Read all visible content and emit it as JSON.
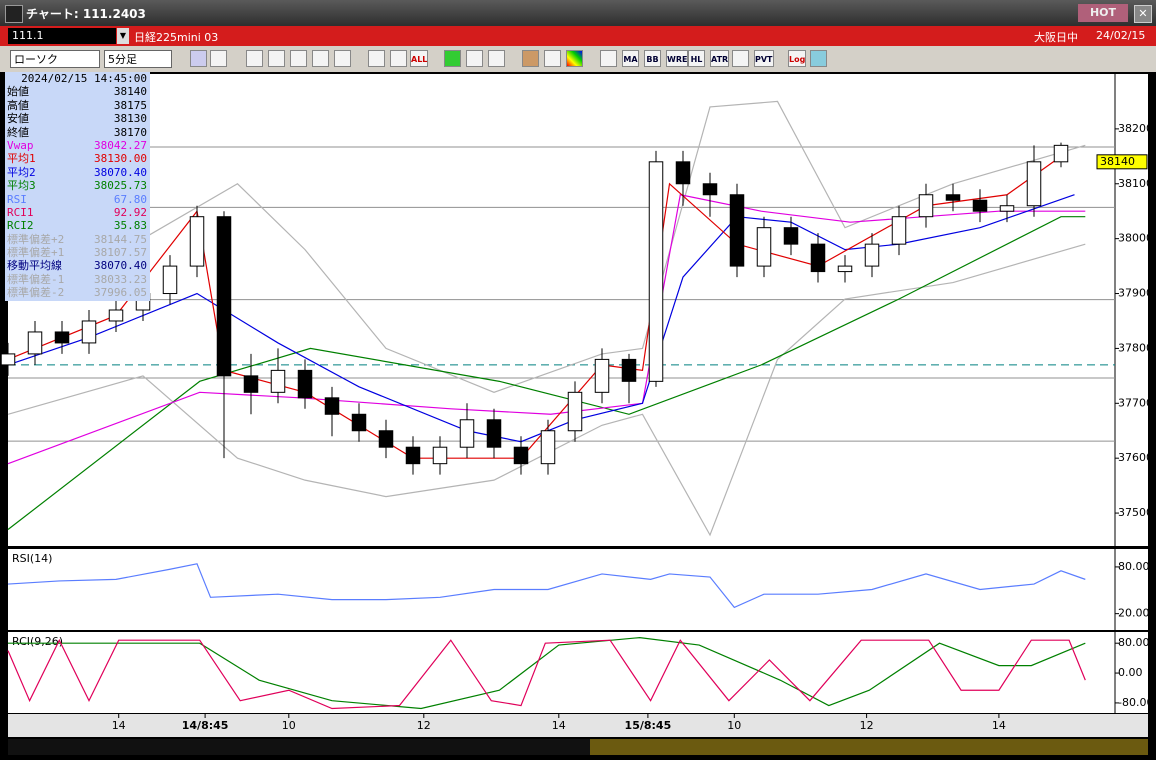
{
  "window": {
    "title": "チャート: 111.2403",
    "hot": "HOT",
    "code": "111.1",
    "instrument": "日経225mini 03",
    "session": "大阪日中",
    "date": "24/02/15"
  },
  "toolbar": {
    "chart_type": "ローソク",
    "interval": "5分足",
    "buttons": [
      "ALL",
      "MA",
      "BB",
      "WRE",
      "HL",
      "ATR",
      "PVT",
      "Log"
    ]
  },
  "info_panel": {
    "timestamp": "2024/02/15  14:45:00",
    "rows": [
      {
        "label": "始値",
        "value": "38140",
        "color": "#000000"
      },
      {
        "label": "高値",
        "value": "38175",
        "color": "#000000"
      },
      {
        "label": "安値",
        "value": "38130",
        "color": "#000000"
      },
      {
        "label": "終値",
        "value": "38170",
        "color": "#000000"
      },
      {
        "label": "Vwap",
        "value": "38042.27",
        "color": "#e000e0"
      },
      {
        "label": "平均1",
        "value": "38130.00",
        "color": "#e00000"
      },
      {
        "label": "平均2",
        "value": "38070.40",
        "color": "#0000e0"
      },
      {
        "label": "平均3",
        "value": "38025.73",
        "color": "#008000"
      },
      {
        "label": "RSI",
        "value": "67.80",
        "color": "#5a7dff"
      },
      {
        "label": "RCI1",
        "value": "92.92",
        "color": "#e0005a"
      },
      {
        "label": "RCI2",
        "value": "35.83",
        "color": "#008000"
      },
      {
        "label": "標準偏差+2",
        "value": "38144.75",
        "color": "#a8a8a8"
      },
      {
        "label": "標準偏差+1",
        "value": "38107.57",
        "color": "#a8a8a8"
      },
      {
        "label": "移動平均線",
        "value": "38070.40",
        "color": "#000080"
      },
      {
        "label": "標準偏差-1",
        "value": "38033.23",
        "color": "#a8a8a8"
      },
      {
        "label": "標準偏差-2",
        "value": "37996.05",
        "color": "#a8a8a8"
      }
    ]
  },
  "chart_data": [
    {
      "type": "candlestick",
      "up_color": "#ffffff",
      "down_color": "#000000",
      "x": [
        0,
        1,
        2,
        3,
        4,
        5,
        6,
        7,
        8,
        9,
        10,
        11,
        12,
        13,
        14,
        15,
        16,
        17,
        18,
        19,
        20,
        21,
        22,
        23,
        24,
        25,
        26,
        27,
        28,
        29,
        30,
        31,
        32,
        33,
        34,
        35,
        36,
        37,
        38,
        39
      ],
      "open": [
        37770,
        37790,
        37830,
        37810,
        37850,
        37870,
        37900,
        37950,
        38040,
        37750,
        37720,
        37760,
        37710,
        37680,
        37650,
        37620,
        37590,
        37620,
        37670,
        37620,
        37590,
        37650,
        37720,
        37780,
        37740,
        38140,
        38100,
        38080,
        37950,
        38020,
        37990,
        37940,
        37950,
        37990,
        38040,
        38080,
        38070,
        38050,
        38060,
        38140
      ],
      "high": [
        37810,
        37850,
        37850,
        37870,
        37890,
        37920,
        37970,
        38060,
        38050,
        37790,
        37800,
        37780,
        37730,
        37700,
        37670,
        37640,
        37640,
        37700,
        37690,
        37640,
        37670,
        37740,
        37800,
        37790,
        38160,
        38160,
        38120,
        38100,
        38040,
        38040,
        38010,
        37970,
        38010,
        38060,
        38100,
        38100,
        38090,
        38080,
        38170,
        38175
      ],
      "low": [
        37750,
        37770,
        37790,
        37790,
        37830,
        37850,
        37880,
        37930,
        37600,
        37680,
        37700,
        37690,
        37640,
        37630,
        37600,
        37570,
        37570,
        37600,
        37600,
        37570,
        37570,
        37630,
        37700,
        37700,
        37730,
        38060,
        38040,
        37930,
        37930,
        37970,
        37920,
        37920,
        37930,
        37970,
        38020,
        38050,
        38030,
        38030,
        38040,
        38130
      ],
      "close": [
        37790,
        37830,
        37810,
        37850,
        37870,
        37900,
        37950,
        38040,
        37750,
        37720,
        37760,
        37710,
        37680,
        37650,
        37620,
        37590,
        37620,
        37670,
        37620,
        37590,
        37650,
        37720,
        37780,
        37740,
        38140,
        38100,
        38080,
        37950,
        38020,
        37990,
        37940,
        37950,
        37990,
        38040,
        38080,
        38070,
        38050,
        38060,
        38140,
        38170
      ],
      "series": [
        {
          "color": "#b4b4b4",
          "x": [
            0,
            5,
            8.5,
            11,
            14,
            18,
            22,
            23.5,
            26,
            28.5,
            31,
            35,
            39.9
          ],
          "values": [
            37900,
            38000,
            38100,
            37980,
            37800,
            37720,
            37790,
            37800,
            38240,
            38250,
            38020,
            38100,
            38170
          ]
        },
        {
          "color": "#b4b4b4",
          "x": [
            0,
            5,
            8.5,
            11,
            14,
            18,
            22,
            23.5,
            26,
            28.5,
            31,
            35,
            39.9
          ],
          "values": [
            37680,
            37750,
            37600,
            37560,
            37530,
            37560,
            37660,
            37680,
            37460,
            37780,
            37890,
            37920,
            37990
          ]
        },
        {
          "color": "#008000",
          "x": [
            0,
            7.1,
            11.2,
            18.2,
            23,
            27.9,
            33,
            39,
            39.9
          ],
          "values": [
            37470,
            37740,
            37800,
            37740,
            37680,
            37770,
            37890,
            38040,
            38040
          ]
        },
        {
          "color": "#e000e0",
          "x": [
            0,
            7.1,
            10.8,
            16.4,
            20.1,
            23.5,
            24.9,
            27.9,
            31.2,
            36.7,
            39.9
          ],
          "values": [
            37590,
            37720,
            37710,
            37690,
            37680,
            37700,
            38080,
            38050,
            38030,
            38050,
            38050
          ]
        },
        {
          "color": "#0000e0",
          "x": [
            0,
            3,
            7,
            10,
            13,
            17,
            19,
            21,
            23.5,
            25,
            27,
            29,
            31,
            33,
            36,
            39.5
          ],
          "values": [
            37770,
            37820,
            37900,
            37810,
            37730,
            37650,
            37630,
            37670,
            37700,
            37930,
            38040,
            38030,
            37980,
            37990,
            38020,
            38080
          ]
        },
        {
          "color": "#e00000",
          "x": [
            0,
            4,
            7,
            8,
            11,
            15,
            19,
            22,
            23.5,
            24.5,
            27,
            30,
            34,
            37,
            39
          ],
          "values": [
            37780,
            37860,
            38050,
            37760,
            37720,
            37600,
            37600,
            37770,
            37760,
            38100,
            37990,
            37950,
            38060,
            38080,
            38150
          ]
        }
      ],
      "hlines": [
        {
          "value": 38167,
          "color": "#909090",
          "dashed": false
        },
        {
          "value": 38057,
          "color": "#909090",
          "dashed": false
        },
        {
          "value": 37889,
          "color": "#909090",
          "dashed": false
        },
        {
          "value": 37746,
          "color": "#909090",
          "dashed": false
        },
        {
          "value": 37631,
          "color": "#909090",
          "dashed": false
        },
        {
          "value": 37770,
          "color": "#008080",
          "dashed": true
        }
      ],
      "last_price": 38140,
      "xlim": [
        0,
        41
      ],
      "ylim": [
        37440,
        38300
      ],
      "yticks": [
        38200,
        38100,
        38000,
        37900,
        37800,
        37700,
        37600,
        37500
      ]
    },
    {
      "type": "line",
      "title": "RSI(14)",
      "xlim": [
        0,
        41
      ],
      "ylim": [
        -1,
        103
      ],
      "yticks": [
        {
          "value": 80,
          "label": "80.00"
        },
        {
          "value": 20,
          "label": "20.00"
        }
      ],
      "series": [
        {
          "color": "#5a7dff",
          "x": [
            0,
            1.9,
            4,
            6,
            7,
            7.5,
            10,
            12,
            14,
            16,
            18,
            20,
            22,
            23.8,
            24.5,
            26,
            26.9,
            28,
            30,
            32,
            34,
            36,
            38,
            39,
            39.9
          ],
          "values": [
            58,
            62,
            64,
            77,
            84,
            41,
            45,
            38,
            38,
            41,
            51,
            51,
            71,
            64,
            71,
            67,
            28,
            45,
            45,
            51,
            71,
            51,
            58,
            75,
            64
          ]
        }
      ]
    },
    {
      "type": "line",
      "title": "RCI(9,26)",
      "xlim": [
        0,
        41
      ],
      "ylim": [
        -107,
        110
      ],
      "yticks": [
        {
          "value": 80,
          "label": "80.00"
        },
        {
          "value": 0,
          "label": "0.00"
        },
        {
          "value": -80,
          "label": "-80.00"
        }
      ],
      "xticks": [
        {
          "value": 4.1,
          "label": "14"
        },
        {
          "value": 7.3,
          "label": "14/8:45"
        },
        {
          "value": 10.4,
          "label": "10"
        },
        {
          "value": 15.4,
          "label": "12"
        },
        {
          "value": 20.4,
          "label": "14"
        },
        {
          "value": 23.7,
          "label": "15/8:45"
        },
        {
          "value": 26.9,
          "label": "10"
        },
        {
          "value": 31.8,
          "label": "12"
        },
        {
          "value": 36.7,
          "label": "14"
        }
      ],
      "series": [
        {
          "color": "#008000",
          "x": [
            0,
            7.1,
            9.3,
            12,
            15.3,
            18.2,
            20.4,
            23.4,
            25.6,
            28.6,
            30.4,
            31.9,
            34.5,
            36.7,
            37.9,
            39.9
          ],
          "values": [
            80,
            80,
            -19,
            -74,
            -95,
            -46,
            75,
            95,
            75,
            -19,
            -87,
            -46,
            80,
            20,
            20,
            80
          ]
        },
        {
          "color": "#e0005a",
          "x": [
            0,
            0.8,
            1.9,
            3,
            4.1,
            7.1,
            8.6,
            10.4,
            12,
            14.5,
            16.4,
            17.9,
            19,
            19.9,
            22.3,
            23.8,
            24.9,
            26.7,
            28.2,
            29.7,
            31.6,
            34.1,
            35.3,
            36.7,
            37.9,
            39.3,
            39.9
          ],
          "values": [
            60,
            -74,
            88,
            -74,
            88,
            88,
            -74,
            -46,
            -95,
            -87,
            88,
            -74,
            -87,
            80,
            88,
            -74,
            88,
            -74,
            35,
            -74,
            88,
            88,
            -46,
            -46,
            88,
            88,
            -19
          ]
        }
      ]
    }
  ]
}
